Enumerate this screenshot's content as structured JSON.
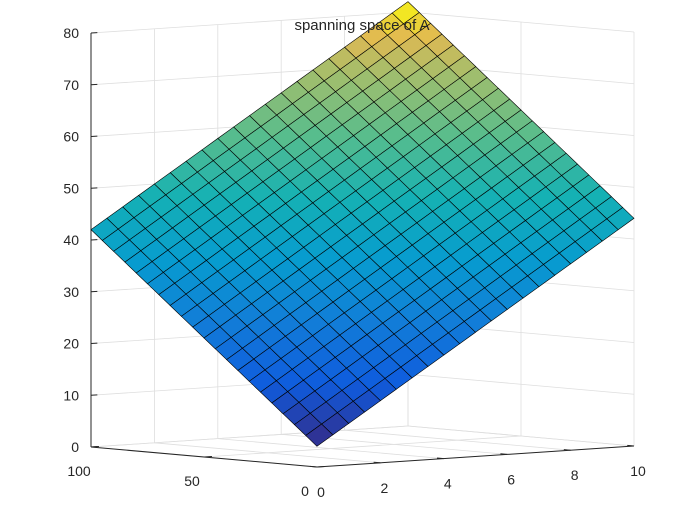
{
  "chart_data": {
    "type": "surface",
    "title": "spanning space of A",
    "xlabel": "",
    "ylabel": "",
    "zlabel": "",
    "colormap": "parula",
    "grid": true,
    "colors": {
      "axis": "#262626",
      "grid": "#dedede",
      "mesh_edge": "#000000"
    },
    "x_axis": {
      "ticks": [
        0,
        2,
        4,
        6,
        8,
        10
      ],
      "labels": [
        "0",
        "2",
        "4",
        "6",
        "8",
        "10"
      ],
      "lim": [
        0,
        10
      ]
    },
    "y_axis": {
      "ticks": [
        0,
        50,
        100
      ],
      "labels": [
        "0",
        "50",
        "100"
      ],
      "lim": [
        0,
        100
      ]
    },
    "z_axis": {
      "ticks": [
        0,
        10,
        20,
        30,
        40,
        50,
        60,
        70,
        80
      ],
      "labels": [
        "0",
        "10",
        "20",
        "30",
        "40",
        "50",
        "60",
        "70",
        "80"
      ],
      "lim": [
        0,
        80
      ]
    },
    "surface": {
      "u_samples": 21,
      "v_samples": 21,
      "corners": [
        {
          "x": 0,
          "y": 0,
          "z": 4
        },
        {
          "x": 10,
          "y": 0,
          "z": 44
        },
        {
          "x": 10,
          "y": 100,
          "z": 82
        },
        {
          "x": 0,
          "y": 100,
          "z": 42
        }
      ]
    }
  }
}
